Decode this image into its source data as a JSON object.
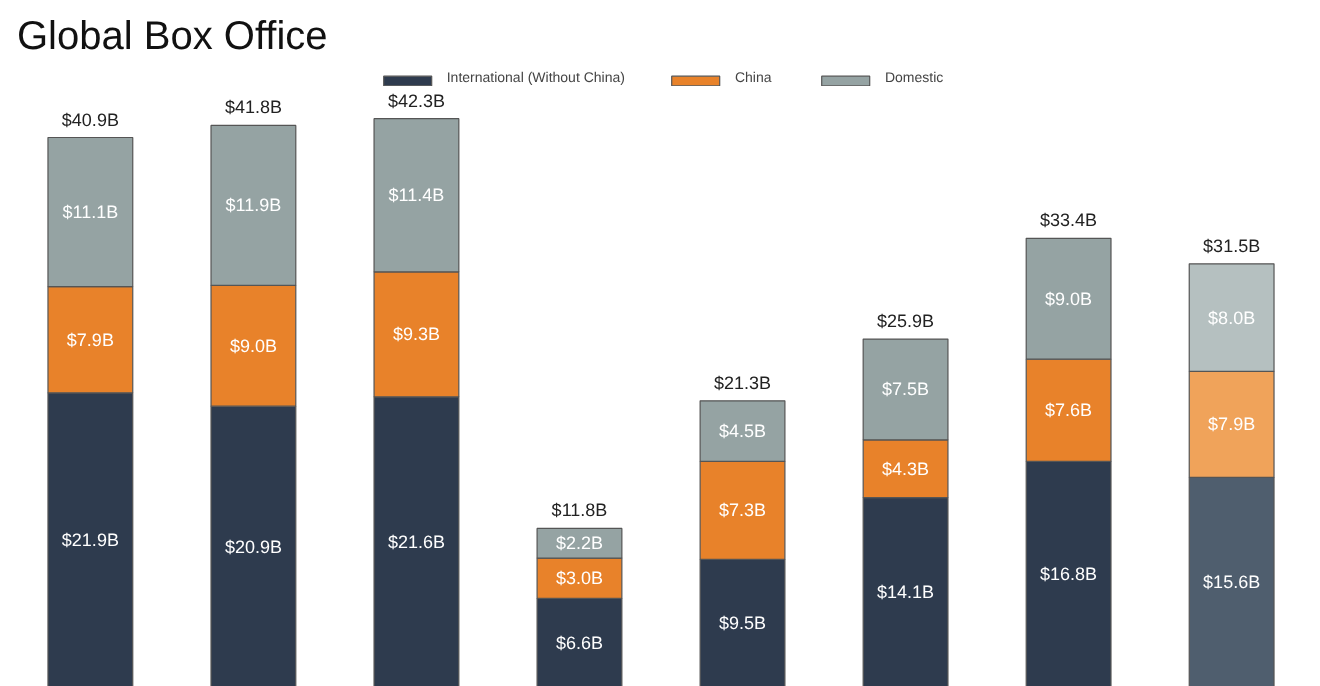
{
  "chart_data": {
    "type": "bar",
    "title": "Global Box Office",
    "stacked": true,
    "categories": [
      null,
      null,
      null,
      null,
      null,
      null,
      null,
      null
    ],
    "series": [
      {
        "name": "International (Without China)",
        "colors": [
          "#2e3b4e",
          "#2e3b4e",
          "#2e3b4e",
          "#2e3b4e",
          "#2e3b4e",
          "#2e3b4e",
          "#2e3b4e",
          "#4f5e6e"
        ],
        "values": [
          21.9,
          20.9,
          21.6,
          6.6,
          9.5,
          14.1,
          16.8,
          15.6
        ],
        "value_labels": [
          "$21.9B",
          "$20.9B",
          "$21.6B",
          "$6.6B",
          "$9.5B",
          "$14.1B",
          "$16.8B",
          "$15.6B"
        ]
      },
      {
        "name": "China",
        "colors": [
          "#e8822a",
          "#e8822a",
          "#e8822a",
          "#e8822a",
          "#e8822a",
          "#e8822a",
          "#e8822a",
          "#f0a35a"
        ],
        "values": [
          7.9,
          9.0,
          9.3,
          3.0,
          7.3,
          4.3,
          7.6,
          7.9
        ],
        "value_labels": [
          "$7.9B",
          "$9.0B",
          "$9.3B",
          "$3.0B",
          "$7.3B",
          "$4.3B",
          "$7.6B",
          "$7.9B"
        ]
      },
      {
        "name": "Domestic",
        "colors": [
          "#95a3a3",
          "#95a3a3",
          "#95a3a3",
          "#95a3a3",
          "#95a3a3",
          "#95a3a3",
          "#95a3a3",
          "#b5c0c0"
        ],
        "values": [
          11.1,
          11.9,
          11.4,
          2.2,
          4.5,
          7.5,
          9.0,
          8.0
        ],
        "value_labels": [
          "$11.1B",
          "$11.9B",
          "$11.4B",
          "$2.2B",
          "$4.5B",
          "$7.5B",
          "$9.0B",
          "$8.0B"
        ]
      }
    ],
    "totals": [
      "$40.9B",
      "$41.8B",
      "$42.3B",
      "$11.8B",
      "$21.3B",
      "$25.9B",
      "$33.4B",
      "$31.5B"
    ],
    "ylim": [
      0,
      46
    ],
    "grid": false,
    "legend": "top",
    "tick_labels": false
  }
}
